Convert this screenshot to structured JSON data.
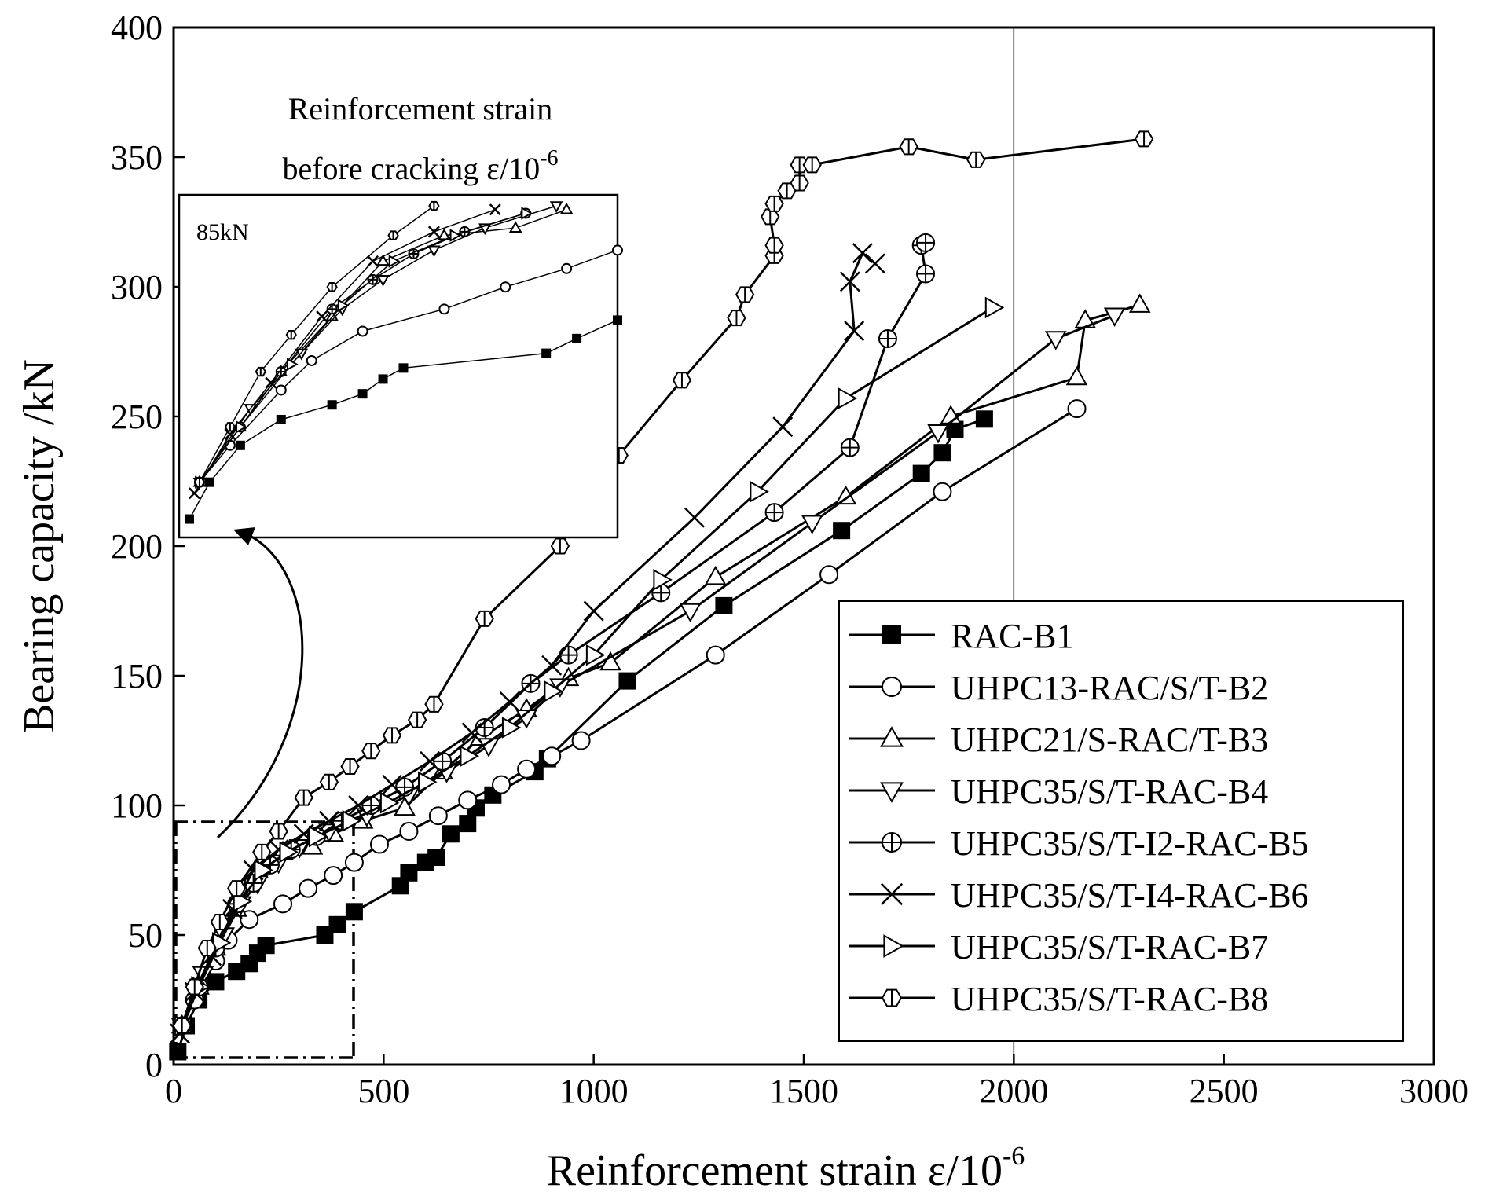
{
  "chart_data": {
    "type": "line",
    "xlabel": "Reinforcement strain ε/10",
    "xlabel_sup": "-6",
    "ylabel": "Bearing capacity /kN",
    "xlim": [
      0,
      3000
    ],
    "ylim": [
      0,
      400
    ],
    "xticks": [
      0,
      500,
      1000,
      1500,
      2000,
      2500,
      3000
    ],
    "yticks": [
      0,
      50,
      100,
      150,
      200,
      250,
      300,
      350,
      400
    ],
    "reference_line_x": 2000,
    "legend_position": "bottom-right",
    "grid": false,
    "series": [
      {
        "name": "RAC-B1",
        "marker": "square-filled",
        "points": [
          [
            10,
            5
          ],
          [
            30,
            15
          ],
          [
            60,
            25
          ],
          [
            100,
            32
          ],
          [
            150,
            36
          ],
          [
            180,
            39
          ],
          [
            200,
            43
          ],
          [
            220,
            46
          ],
          [
            360,
            50
          ],
          [
            390,
            54
          ],
          [
            430,
            59
          ],
          [
            540,
            69
          ],
          [
            560,
            74
          ],
          [
            600,
            78
          ],
          [
            625,
            80
          ],
          [
            660,
            89
          ],
          [
            700,
            93
          ],
          [
            720,
            99
          ],
          [
            760,
            104
          ],
          [
            860,
            113
          ],
          [
            890,
            118
          ],
          [
            1080,
            148
          ],
          [
            1310,
            177
          ],
          [
            1590,
            206
          ],
          [
            1780,
            228
          ],
          [
            1830,
            236
          ],
          [
            1860,
            245
          ],
          [
            1930,
            249
          ]
        ]
      },
      {
        "name": "UHPC13-RAC/S/T-B2",
        "marker": "circle-open",
        "points": [
          [
            20,
            15
          ],
          [
            50,
            25
          ],
          [
            100,
            40
          ],
          [
            130,
            48
          ],
          [
            180,
            56
          ],
          [
            260,
            62
          ],
          [
            320,
            68
          ],
          [
            380,
            73
          ],
          [
            430,
            78
          ],
          [
            490,
            85
          ],
          [
            560,
            90
          ],
          [
            630,
            96
          ],
          [
            700,
            102
          ],
          [
            780,
            108
          ],
          [
            840,
            114
          ],
          [
            900,
            119
          ],
          [
            970,
            125
          ],
          [
            1290,
            158
          ],
          [
            1560,
            189
          ],
          [
            1830,
            221
          ],
          [
            2150,
            253
          ]
        ]
      },
      {
        "name": "UHPC21/S-RAC/T-B3",
        "marker": "triangle-up-open",
        "points": [
          [
            20,
            15
          ],
          [
            60,
            30
          ],
          [
            100,
            45
          ],
          [
            150,
            60
          ],
          [
            200,
            75
          ],
          [
            260,
            82
          ],
          [
            330,
            84
          ],
          [
            380,
            89
          ],
          [
            450,
            94
          ],
          [
            550,
            99
          ],
          [
            640,
            113
          ],
          [
            730,
            126
          ],
          [
            840,
            137
          ],
          [
            940,
            149
          ],
          [
            1040,
            155
          ],
          [
            1290,
            188
          ],
          [
            1600,
            219
          ],
          [
            1850,
            250
          ],
          [
            2150,
            265
          ],
          [
            2170,
            287
          ],
          [
            2300,
            293
          ]
        ]
      },
      {
        "name": "UHPC35/S/T-RAC-B4",
        "marker": "triangle-down-open",
        "points": [
          [
            20,
            15
          ],
          [
            70,
            35
          ],
          [
            120,
            50
          ],
          [
            160,
            62
          ],
          [
            200,
            70
          ],
          [
            250,
            78
          ],
          [
            300,
            84
          ],
          [
            370,
            90
          ],
          [
            460,
            96
          ],
          [
            560,
            104
          ],
          [
            650,
            113
          ],
          [
            750,
            123
          ],
          [
            840,
            134
          ],
          [
            920,
            146
          ],
          [
            1230,
            175
          ],
          [
            1520,
            209
          ],
          [
            1820,
            244
          ],
          [
            2100,
            280
          ],
          [
            2240,
            289
          ]
        ]
      },
      {
        "name": "UHPC35/S/T-I2-RAC-B5",
        "marker": "circle-crossed",
        "points": [
          [
            20,
            15
          ],
          [
            60,
            30
          ],
          [
            100,
            45
          ],
          [
            150,
            62
          ],
          [
            190,
            70
          ],
          [
            230,
            77
          ],
          [
            280,
            83
          ],
          [
            340,
            88
          ],
          [
            400,
            94
          ],
          [
            470,
            100
          ],
          [
            550,
            107
          ],
          [
            640,
            117
          ],
          [
            740,
            130
          ],
          [
            850,
            147
          ],
          [
            940,
            158
          ],
          [
            1160,
            182
          ],
          [
            1430,
            213
          ],
          [
            1610,
            238
          ],
          [
            1700,
            280
          ],
          [
            1790,
            305
          ],
          [
            1780,
            316
          ],
          [
            1790,
            317
          ]
        ]
      },
      {
        "name": "UHPC35/S/T-I4-RAC-B6",
        "marker": "x-cross",
        "points": [
          [
            15,
            12
          ],
          [
            50,
            28
          ],
          [
            90,
            42
          ],
          [
            140,
            60
          ],
          [
            190,
            75
          ],
          [
            250,
            83
          ],
          [
            310,
            89
          ],
          [
            370,
            94
          ],
          [
            440,
            100
          ],
          [
            520,
            108
          ],
          [
            610,
            117
          ],
          [
            710,
            128
          ],
          [
            800,
            140
          ],
          [
            900,
            154
          ],
          [
            1000,
            175
          ],
          [
            1240,
            211
          ],
          [
            1450,
            246
          ],
          [
            1620,
            283
          ],
          [
            1610,
            302
          ],
          [
            1640,
            313
          ],
          [
            1670,
            309
          ]
        ]
      },
      {
        "name": "UHPC35/S/T-RAC-B7",
        "marker": "triangle-right-open",
        "points": [
          [
            20,
            15
          ],
          [
            60,
            30
          ],
          [
            110,
            47
          ],
          [
            160,
            63
          ],
          [
            210,
            75
          ],
          [
            270,
            82
          ],
          [
            340,
            88
          ],
          [
            420,
            94
          ],
          [
            510,
            101
          ],
          [
            600,
            109
          ],
          [
            700,
            119
          ],
          [
            800,
            130
          ],
          [
            900,
            144
          ],
          [
            1000,
            158
          ],
          [
            1160,
            187
          ],
          [
            1390,
            221
          ],
          [
            1600,
            257
          ],
          [
            1950,
            292
          ]
        ]
      },
      {
        "name": "UHPC35/S/T-RAC-B8",
        "marker": "hexagon-halved",
        "points": [
          [
            20,
            15
          ],
          [
            50,
            30
          ],
          [
            80,
            45
          ],
          [
            110,
            55
          ],
          [
            150,
            68
          ],
          [
            210,
            82
          ],
          [
            250,
            90
          ],
          [
            310,
            103
          ],
          [
            370,
            109
          ],
          [
            420,
            115
          ],
          [
            470,
            121
          ],
          [
            520,
            127
          ],
          [
            580,
            133
          ],
          [
            620,
            139
          ],
          [
            740,
            172
          ],
          [
            920,
            200
          ],
          [
            1060,
            235
          ],
          [
            1210,
            264
          ],
          [
            1340,
            288
          ],
          [
            1360,
            297
          ],
          [
            1430,
            312
          ],
          [
            1430,
            316
          ],
          [
            1420,
            327
          ],
          [
            1430,
            332
          ],
          [
            1460,
            337
          ],
          [
            1490,
            340
          ],
          [
            1490,
            347
          ],
          [
            1520,
            347
          ],
          [
            1750,
            354
          ],
          [
            1910,
            349
          ],
          [
            2310,
            357
          ]
        ]
      }
    ],
    "inset": {
      "title_line1": "Reinforcement strain",
      "title_line2": "before cracking ε/10",
      "title_sup": "-6",
      "tag": "85kN"
    }
  }
}
